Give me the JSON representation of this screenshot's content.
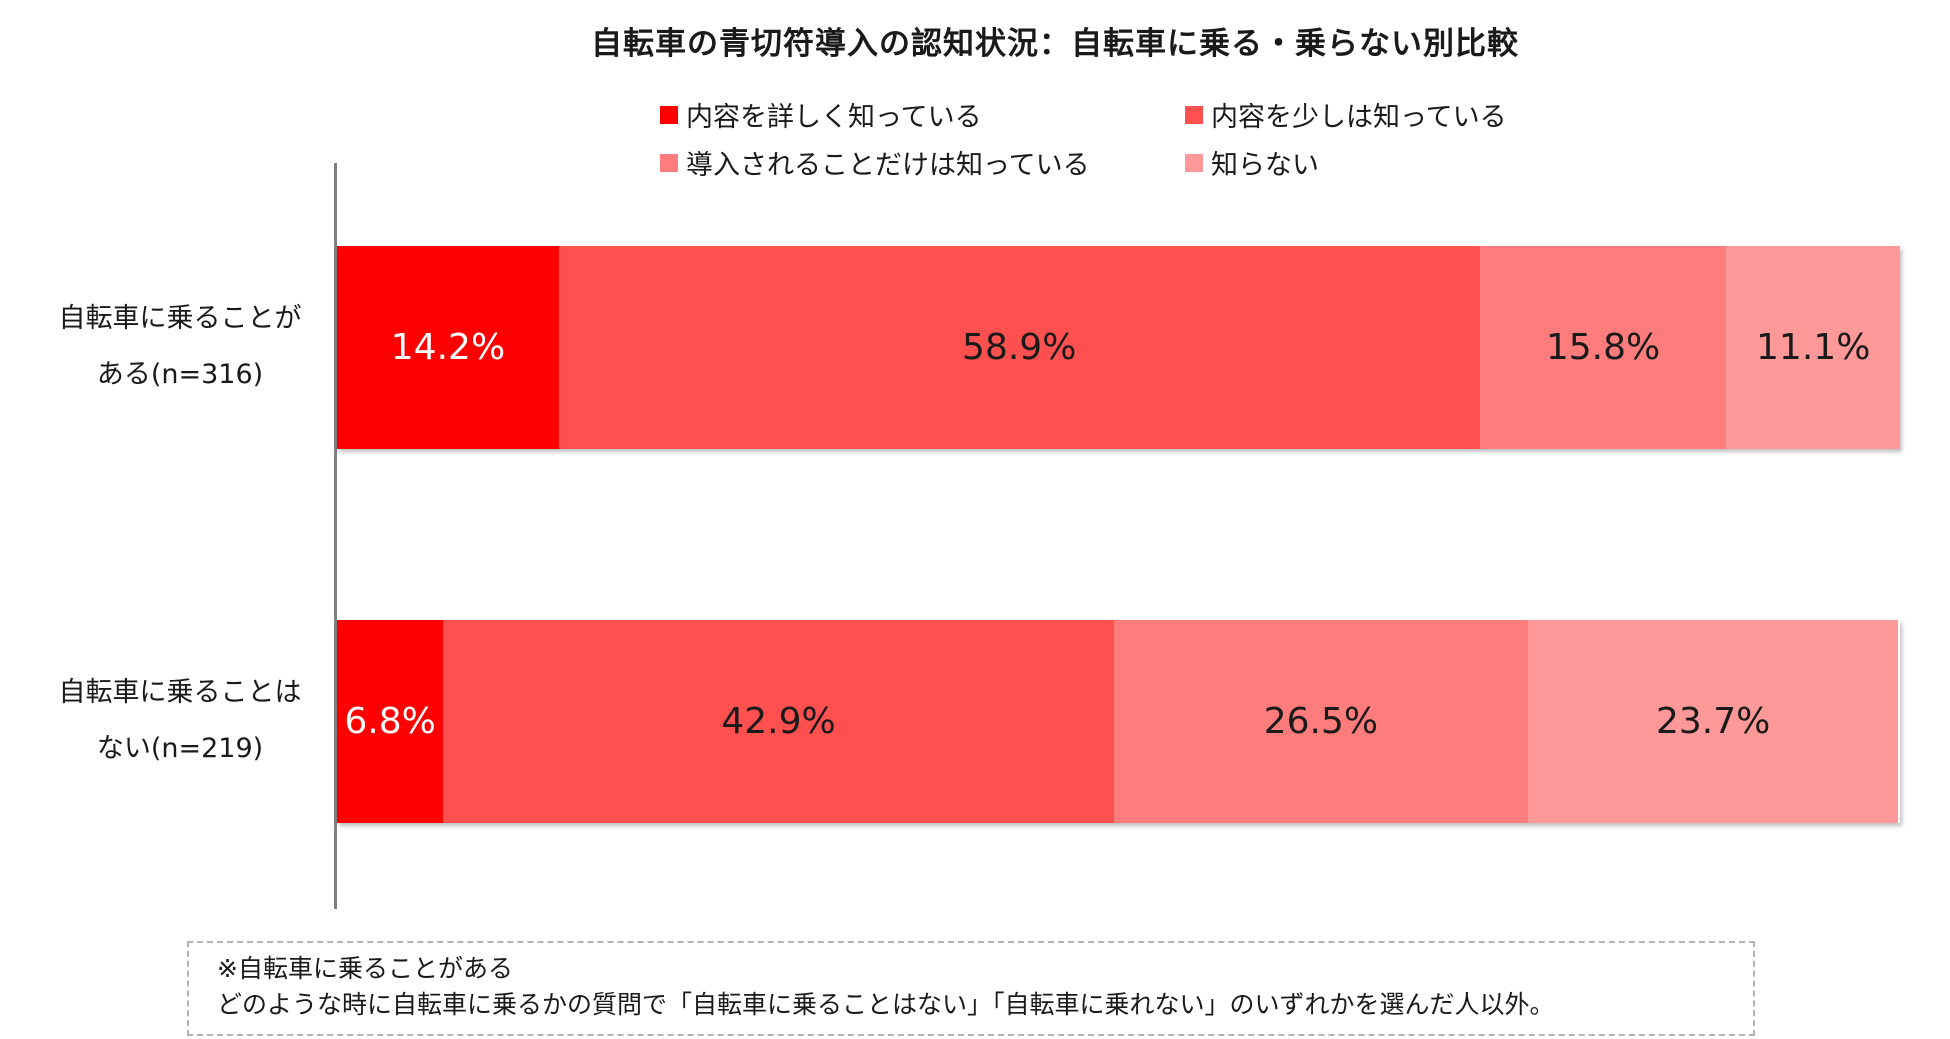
{
  "chart_data": {
    "type": "bar",
    "orientation": "horizontal",
    "stacked": true,
    "percent": true,
    "title": "自転車の青切符導入の認知状況：自転車に乗る・乗らない別比較",
    "legend_position": "top",
    "grid": false,
    "xlim": [
      0,
      100
    ],
    "categories": [
      [
        "自転車に乗ることが",
        "ある(n=316)"
      ],
      [
        "自転車に乗ることは",
        "ない(n=219)"
      ]
    ],
    "series": [
      {
        "name": "内容を詳しく知っている",
        "color": "#ff0000",
        "label_color": "#ffffff",
        "values": [
          14.2,
          6.8
        ],
        "labels": [
          "14.2%",
          "6.8%"
        ]
      },
      {
        "name": "内容を少しは知っている",
        "color": "#ff5050",
        "label_color": "#1a1a1a",
        "values": [
          58.9,
          42.9
        ],
        "labels": [
          "58.9%",
          "42.9%"
        ]
      },
      {
        "name": "導入されることだけは知っている",
        "color": "#ff7c7c",
        "label_color": "#1a1a1a",
        "values": [
          15.8,
          26.5
        ],
        "labels": [
          "15.8%",
          "26.5%"
        ]
      },
      {
        "name": "知らない",
        "color": "#ff9999",
        "label_color": "#1a1a1a",
        "values": [
          11.1,
          23.7
        ],
        "labels": [
          "11.1%",
          "23.7%"
        ]
      }
    ]
  },
  "note": {
    "line1": "※自転車に乗ることがある",
    "line2": "どのような時に自転車に乗るかの質問で「自転車に乗ることはない」「自転車に乗れない」のいずれかを選んだ人以外。"
  }
}
